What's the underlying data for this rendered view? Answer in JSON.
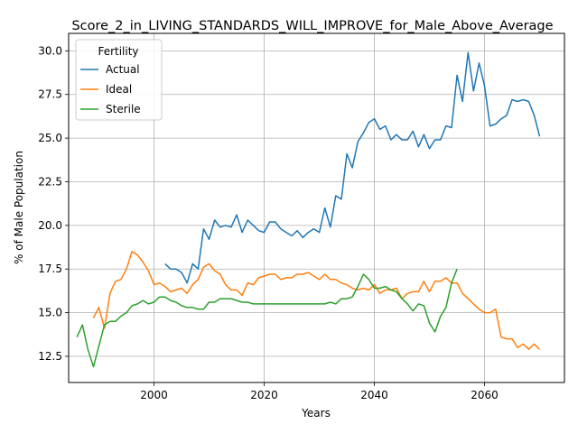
{
  "chart_data": {
    "type": "line",
    "title": "Score_2_in_LIVING_STANDARDS_WILL_IMPROVE_for_Male_Above_Average",
    "xlabel": "Years",
    "ylabel": "% of Male Population",
    "xlim": [
      1984.5,
      2074.5
    ],
    "ylim": [
      11.0,
      31.0
    ],
    "xticks": [
      2000,
      2020,
      2040,
      2060
    ],
    "yticks": [
      12.5,
      15.0,
      17.5,
      20.0,
      22.5,
      25.0,
      27.5,
      30.0
    ],
    "grid": true,
    "legend": {
      "title": "Fertility",
      "position": "top-left"
    },
    "series": [
      {
        "name": "Actual",
        "color": "#1f77b4",
        "x": [
          2002,
          2003,
          2004,
          2005,
          2006,
          2007,
          2008,
          2009,
          2010,
          2011,
          2012,
          2013,
          2014,
          2015,
          2016,
          2017,
          2018,
          2019,
          2020,
          2021,
          2022,
          2023,
          2024,
          2025,
          2026,
          2027,
          2028,
          2029,
          2030,
          2031,
          2032,
          2033,
          2034,
          2035,
          2036,
          2037,
          2038,
          2039,
          2040,
          2041,
          2042,
          2043,
          2044,
          2045,
          2046,
          2047,
          2048,
          2049,
          2050,
          2051,
          2052,
          2053,
          2054,
          2055,
          2056,
          2057,
          2058,
          2059,
          2060,
          2061,
          2062,
          2063,
          2064,
          2065,
          2066,
          2067,
          2068,
          2069,
          2070
        ],
        "values": [
          17.8,
          17.5,
          17.5,
          17.3,
          16.7,
          17.8,
          17.5,
          19.8,
          19.2,
          20.3,
          19.9,
          20.0,
          19.9,
          20.6,
          19.6,
          20.3,
          20.0,
          19.7,
          19.6,
          20.2,
          20.2,
          19.8,
          19.6,
          19.4,
          19.7,
          19.3,
          19.6,
          19.8,
          19.6,
          21.0,
          19.9,
          21.7,
          21.5,
          24.1,
          23.3,
          24.8,
          25.3,
          25.9,
          26.1,
          25.5,
          25.7,
          24.9,
          25.2,
          24.9,
          24.9,
          25.4,
          24.5,
          25.2,
          24.4,
          24.9,
          24.9,
          25.7,
          25.6,
          28.6,
          27.1,
          29.9,
          27.7,
          29.3,
          28.0,
          25.7,
          25.8,
          26.1,
          26.3,
          27.2,
          27.1,
          27.2,
          27.1,
          26.3,
          25.1
        ]
      },
      {
        "name": "Ideal",
        "color": "#ff7f0e",
        "x": [
          1989,
          1990,
          1991,
          1992,
          1993,
          1994,
          1995,
          1996,
          1997,
          1998,
          1999,
          2000,
          2001,
          2002,
          2003,
          2004,
          2005,
          2006,
          2007,
          2008,
          2009,
          2010,
          2011,
          2012,
          2013,
          2014,
          2015,
          2016,
          2017,
          2018,
          2019,
          2020,
          2021,
          2022,
          2023,
          2024,
          2025,
          2026,
          2027,
          2028,
          2029,
          2030,
          2031,
          2032,
          2033,
          2034,
          2035,
          2036,
          2037,
          2038,
          2039,
          2040,
          2041,
          2042,
          2043,
          2044,
          2045,
          2046,
          2047,
          2048,
          2049,
          2050,
          2051,
          2052,
          2053,
          2054,
          2055,
          2056,
          2057,
          2058,
          2059,
          2060,
          2061,
          2062,
          2063,
          2064,
          2065,
          2066,
          2067,
          2068,
          2069,
          2070
        ],
        "values": [
          14.7,
          15.3,
          14.1,
          16.1,
          16.8,
          16.9,
          17.5,
          18.5,
          18.3,
          17.9,
          17.4,
          16.6,
          16.7,
          16.5,
          16.2,
          16.3,
          16.4,
          16.1,
          16.6,
          16.9,
          17.6,
          17.8,
          17.4,
          17.2,
          16.6,
          16.3,
          16.3,
          16.0,
          16.7,
          16.6,
          17.0,
          17.1,
          17.2,
          17.2,
          16.9,
          17.0,
          17.0,
          17.2,
          17.2,
          17.3,
          17.1,
          16.9,
          17.2,
          16.9,
          16.9,
          16.7,
          16.6,
          16.4,
          16.3,
          16.4,
          16.3,
          16.6,
          16.1,
          16.3,
          16.3,
          16.4,
          15.8,
          16.1,
          16.2,
          16.2,
          16.8,
          16.2,
          16.8,
          16.8,
          17.0,
          16.7,
          16.7,
          16.1,
          15.8,
          15.5,
          15.2,
          15.0,
          15.0,
          15.2,
          13.6,
          13.5,
          13.5,
          13.0,
          13.2,
          12.9,
          13.2,
          12.9
        ]
      },
      {
        "name": "Sterile",
        "color": "#2ca02c",
        "x": [
          1986,
          1987,
          1988,
          1989,
          1990,
          1991,
          1992,
          1993,
          1994,
          1995,
          1996,
          1997,
          1998,
          1999,
          2000,
          2001,
          2002,
          2003,
          2004,
          2005,
          2006,
          2007,
          2008,
          2009,
          2010,
          2011,
          2012,
          2013,
          2014,
          2015,
          2016,
          2017,
          2018,
          2019,
          2020,
          2021,
          2022,
          2023,
          2024,
          2025,
          2026,
          2027,
          2028,
          2029,
          2030,
          2031,
          2032,
          2033,
          2034,
          2035,
          2036,
          2037,
          2038,
          2039,
          2040,
          2041,
          2042,
          2043,
          2044,
          2045,
          2046,
          2047,
          2048,
          2049,
          2050,
          2051,
          2052,
          2053,
          2054,
          2055
        ],
        "values": [
          13.6,
          14.3,
          12.9,
          11.9,
          13.1,
          14.3,
          14.5,
          14.5,
          14.8,
          15.0,
          15.4,
          15.5,
          15.7,
          15.5,
          15.6,
          15.9,
          15.9,
          15.7,
          15.6,
          15.4,
          15.3,
          15.3,
          15.2,
          15.2,
          15.6,
          15.6,
          15.8,
          15.8,
          15.8,
          15.7,
          15.6,
          15.6,
          15.5,
          15.5,
          15.5,
          15.5,
          15.5,
          15.5,
          15.5,
          15.5,
          15.5,
          15.5,
          15.5,
          15.5,
          15.5,
          15.5,
          15.6,
          15.5,
          15.8,
          15.8,
          15.9,
          16.5,
          17.2,
          16.9,
          16.4,
          16.4,
          16.5,
          16.3,
          16.2,
          15.8,
          15.5,
          15.1,
          15.5,
          15.4,
          14.4,
          13.9,
          14.8,
          15.3,
          16.7,
          17.5
        ]
      }
    ]
  }
}
